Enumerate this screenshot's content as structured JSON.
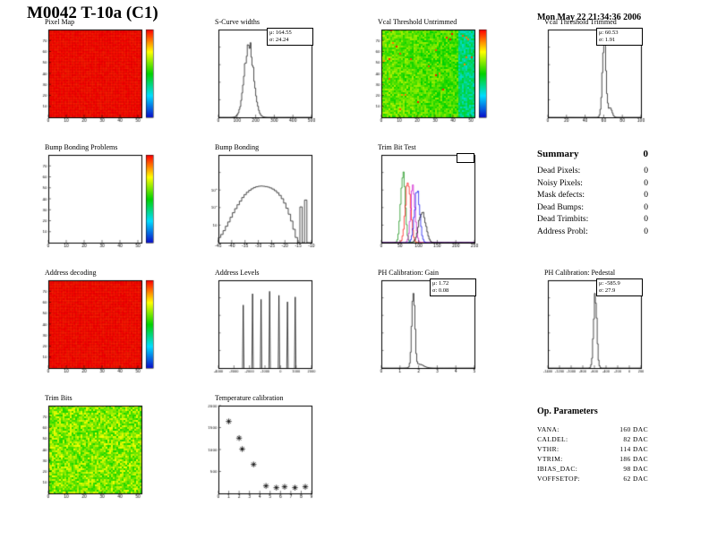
{
  "page": {
    "title": "M0042 T-10a (C1)",
    "timestamp": "Mon May 22 21:34:36 2006"
  },
  "summary": {
    "title": "Summary",
    "total": "0",
    "rows": [
      {
        "label": "Dead Pixels:",
        "value": "0"
      },
      {
        "label": "Noisy Pixels:",
        "value": "0"
      },
      {
        "label": "Mask defects:",
        "value": "0"
      },
      {
        "label": "Dead Bumps:",
        "value": "0"
      },
      {
        "label": "Dead Trimbits:",
        "value": "0"
      },
      {
        "label": "Address Probl:",
        "value": "0"
      }
    ]
  },
  "op_parameters": {
    "title": "Op. Parameters",
    "rows": [
      {
        "label": "VANA:",
        "value": "160 DAC"
      },
      {
        "label": "CALDEL:",
        "value": "82 DAC"
      },
      {
        "label": "VTHR:",
        "value": "114 DAC"
      },
      {
        "label": "VTRIM:",
        "value": "186 DAC"
      },
      {
        "label": "IBIAS_DAC:",
        "value": "98 DAC"
      },
      {
        "label": "VOFFSETOP:",
        "value": "62 DAC"
      }
    ]
  },
  "chart_data": [
    {
      "title": "Pixel Map",
      "type": "heatmap",
      "style": "solid-red",
      "colorbar": true,
      "x": {
        "range": [
          0,
          52
        ],
        "ticks": [
          0,
          10,
          20,
          30,
          40,
          50
        ]
      },
      "y": {
        "range": [
          0,
          80
        ],
        "ticks": [
          10,
          20,
          30,
          40,
          50,
          60,
          70
        ]
      }
    },
    {
      "title": "S-Curve widths",
      "type": "histogram",
      "x": {
        "range": [
          0,
          500
        ],
        "ticks": [
          0,
          100,
          200,
          300,
          400,
          500
        ]
      },
      "components": [
        {
          "mean": 164.55,
          "sigma": 24.24,
          "amp": 1
        }
      ],
      "stats_lines": [
        "μ: 164.55",
        "σ: 24.24"
      ]
    },
    {
      "title": "Vcal Threshold Untrimmed",
      "type": "heatmap",
      "style": "noise-gradient",
      "colorbar": true,
      "x": {
        "range": [
          0,
          52
        ],
        "ticks": [
          0,
          10,
          20,
          30,
          40,
          50
        ]
      },
      "y": {
        "range": [
          0,
          80
        ],
        "ticks": [
          10,
          20,
          30,
          40,
          50,
          60,
          70
        ]
      }
    },
    {
      "title": "Vcal Threshold Trimmed",
      "type": "histogram",
      "x": {
        "range": [
          0,
          100
        ],
        "ticks": [
          0,
          20,
          40,
          60,
          80,
          100
        ]
      },
      "components": [
        {
          "mean": 60.53,
          "sigma": 1.91,
          "amp": 1
        },
        {
          "mean": 67,
          "sigma": 2,
          "amp": 0.12
        }
      ],
      "stats_lines": [
        "μ: 60.53",
        "σ: 1.91"
      ]
    },
    {
      "title": "Bump Bonding Problems",
      "type": "heatmap",
      "style": "empty",
      "colorbar": true,
      "x": {
        "range": [
          0,
          52
        ],
        "ticks": [
          0,
          10,
          20,
          30,
          40,
          50
        ]
      },
      "y": {
        "range": [
          0,
          80
        ],
        "ticks": [
          10,
          20,
          30,
          40,
          50,
          60,
          70
        ]
      }
    },
    {
      "title": "Bump Bonding",
      "type": "histogram-log",
      "x": {
        "range": [
          -45,
          -10
        ],
        "ticks": [
          -45,
          -40,
          -35,
          -30,
          -25,
          -20,
          -15,
          -10
        ]
      },
      "bins": [
        2,
        3,
        5,
        9,
        16,
        30,
        55,
        95,
        160,
        260,
        420,
        620,
        850,
        1100,
        1350,
        1600,
        1780,
        1900,
        1950,
        1900,
        1820,
        1700,
        1520,
        1300,
        1050,
        800,
        560,
        360,
        200,
        100,
        45,
        18,
        6,
        2,
        0,
        120,
        0,
        300,
        0,
        0
      ],
      "ylabels": [
        "10",
        "10²",
        "10³"
      ]
    },
    {
      "title": "Trim Bit Test",
      "type": "multi-histogram",
      "x": {
        "range": [
          0,
          250
        ],
        "ticks": [
          0,
          50,
          100,
          150,
          200,
          250
        ]
      },
      "series": [
        {
          "color": "#008800",
          "mean": 58,
          "sigma": 6,
          "amp": 1.0
        },
        {
          "color": "#ff0000",
          "mean": 72,
          "sigma": 7,
          "amp": 0.85
        },
        {
          "color": "#cc00cc",
          "mean": 85,
          "sigma": 6,
          "amp": 0.78
        },
        {
          "color": "#0000ee",
          "mean": 96,
          "sigma": 7,
          "amp": 0.7
        },
        {
          "color": "#000000",
          "mean": 110,
          "sigma": 9,
          "amp": 0.45
        }
      ]
    },
    {
      "title": "Address decoding",
      "type": "heatmap",
      "style": "solid-red",
      "colorbar": true,
      "x": {
        "range": [
          0,
          52
        ],
        "ticks": [
          0,
          10,
          20,
          30,
          40,
          50
        ]
      },
      "y": {
        "range": [
          0,
          80
        ],
        "ticks": [
          10,
          20,
          30,
          40,
          50,
          60,
          70
        ]
      }
    },
    {
      "title": "Address Levels",
      "type": "spikes",
      "x": {
        "range": [
          -4000,
          2000
        ],
        "ticks": [
          -4000,
          -3000,
          -2000,
          -1000,
          0,
          1000,
          2000
        ]
      },
      "spikes": [
        {
          "x": -2400,
          "h": 0.78
        },
        {
          "x": -1800,
          "h": 0.92
        },
        {
          "x": -1250,
          "h": 0.85
        },
        {
          "x": -700,
          "h": 0.95
        },
        {
          "x": -100,
          "h": 0.9
        },
        {
          "x": 450,
          "h": 0.82
        },
        {
          "x": 950,
          "h": 0.88
        }
      ]
    },
    {
      "title": "PH Calibration: Gain",
      "type": "histogram",
      "x": {
        "range": [
          0,
          5
        ],
        "ticks": [
          0,
          1,
          2,
          3,
          4,
          5
        ]
      },
      "components": [
        {
          "mean": 1.72,
          "sigma": 0.08,
          "amp": 1
        },
        {
          "mean": 2.0,
          "sigma": 0.25,
          "amp": 0.05
        }
      ],
      "stats_lines": [
        "μ: 1.72",
        "σ: 0.08"
      ]
    },
    {
      "title": "PH Calibration: Pedestal",
      "type": "histogram",
      "x": {
        "range": [
          -1400,
          200
        ],
        "ticks": [
          -1400,
          -1200,
          -1000,
          -800,
          -600,
          -400,
          -200,
          0,
          200
        ]
      },
      "components": [
        {
          "mean": -585.9,
          "sigma": 27.9,
          "amp": 1
        }
      ],
      "stats_lines": [
        "μ: -585.9",
        "σ: 27.9"
      ]
    },
    {
      "title": "Trim Bits",
      "type": "heatmap",
      "style": "noise-green",
      "colorbar": false,
      "x": {
        "range": [
          0,
          52
        ],
        "ticks": [
          0,
          10,
          20,
          30,
          40,
          50
        ]
      },
      "y": {
        "range": [
          0,
          80
        ],
        "ticks": [
          10,
          20,
          30,
          40,
          50,
          60,
          70
        ]
      }
    },
    {
      "title": "Temperature calibration",
      "type": "scatter",
      "marker": "asterisk",
      "x": {
        "range": [
          0,
          9
        ],
        "ticks": [
          0,
          1,
          2,
          3,
          4,
          5,
          6,
          7,
          8,
          9
        ]
      },
      "y": {
        "range": [
          0,
          2000
        ],
        "ticks": [
          500,
          1000,
          1500,
          2000
        ]
      },
      "points": [
        [
          1.0,
          1640
        ],
        [
          2.0,
          1260
        ],
        [
          2.3,
          1010
        ],
        [
          3.4,
          660
        ],
        [
          4.6,
          170
        ],
        [
          5.6,
          130
        ],
        [
          6.4,
          150
        ],
        [
          7.4,
          130
        ],
        [
          8.4,
          150
        ]
      ]
    }
  ]
}
